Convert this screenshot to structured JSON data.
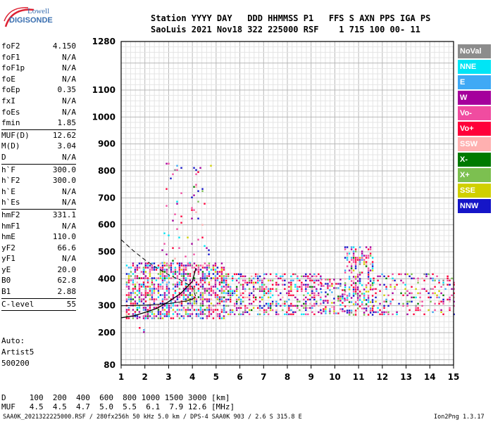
{
  "logo": {
    "line1": "Lowell",
    "line2": "DIGISONDE"
  },
  "header": {
    "line1": "Station YYYY DAY   DDD HHMMSS P1   FFS S AXN PPS IGA PS",
    "line2": "SaoLuis 2021 Nov18 322 225000 RSF    1 715 100 00- 11"
  },
  "params": [
    {
      "name": "foF2",
      "value": "4.150"
    },
    {
      "name": "foF1",
      "value": "N/A"
    },
    {
      "name": "foF1p",
      "value": "N/A"
    },
    {
      "name": "foE",
      "value": "N/A"
    },
    {
      "name": "foEp",
      "value": "0.35"
    },
    {
      "name": "fxI",
      "value": "N/A"
    },
    {
      "name": "foEs",
      "value": "N/A"
    },
    {
      "name": "fmin",
      "value": "1.85",
      "sep": true
    },
    {
      "name": "MUF(D)",
      "value": "12.62"
    },
    {
      "name": "M(D)",
      "value": "3.04"
    },
    {
      "name": "D",
      "value": "N/A",
      "sep": true
    },
    {
      "name": "h`F",
      "value": "300.0"
    },
    {
      "name": "h`F2",
      "value": "300.0"
    },
    {
      "name": "h`E",
      "value": "N/A"
    },
    {
      "name": "h`Es",
      "value": "N/A",
      "sep": true
    },
    {
      "name": "hmF2",
      "value": "331.1"
    },
    {
      "name": "hmF1",
      "value": "N/A"
    },
    {
      "name": "hmE",
      "value": "110.0"
    },
    {
      "name": "yF2",
      "value": "66.6"
    },
    {
      "name": "yF1",
      "value": "N/A"
    },
    {
      "name": "yE",
      "value": "20.0"
    },
    {
      "name": "B0",
      "value": "62.8"
    },
    {
      "name": "B1",
      "value": "2.88",
      "sep": true
    },
    {
      "name": "C-level",
      "value": "55",
      "sep": true
    }
  ],
  "autoscale": {
    "line1": "Auto:",
    "line2": "Artist5",
    "line3": "500200"
  },
  "legend": [
    {
      "label": "NoVal",
      "color": "#8c8c8c"
    },
    {
      "label": "NNE",
      "color": "#00e5f5"
    },
    {
      "label": "E",
      "color": "#3fa9f5"
    },
    {
      "label": "W",
      "color": "#a5009c"
    },
    {
      "label": "Vo-",
      "color": "#f04ca0"
    },
    {
      "label": "Vo+",
      "color": "#ff003a"
    },
    {
      "label": "SSW",
      "color": "#ffb0b0"
    },
    {
      "label": "X-",
      "color": "#007a00"
    },
    {
      "label": "X+",
      "color": "#7cc050"
    },
    {
      "label": "SSE",
      "color": "#d0d000"
    },
    {
      "label": "NNW",
      "color": "#1515c8"
    }
  ],
  "bottom": {
    "dline": "D     100  200  400  600  800 1000 1500 3000 [km]",
    "mufline": "MUF   4.5  4.5  4.7  5.0  5.5  6.1  7.9 12.6 [MHz]",
    "footer": "SAA0K_2021322225000.RSF / 280fx256h 50 kHz 5.0 km / DPS-4 SAA0K 903 / 2.6 S 315.8 E",
    "version": "Ion2Png 1.3.17"
  },
  "chart_data": {
    "type": "scatter",
    "xlim": [
      1,
      15
    ],
    "ylim": [
      80,
      1280
    ],
    "xticks": [
      "1",
      "2",
      "3",
      "4",
      "5",
      "6",
      "7",
      "8",
      "9",
      "10",
      "11",
      "12",
      "13",
      "14",
      "15"
    ],
    "yticks": [
      "80",
      "200",
      "300",
      "400",
      "500",
      "600",
      "700",
      "800",
      "900",
      "1000",
      "1100",
      "1280"
    ],
    "grid": true,
    "trace": {
      "x": [
        1.0,
        1.5,
        2.0,
        2.5,
        3.0,
        3.5,
        4.0,
        4.15
      ],
      "y": [
        255,
        262,
        275,
        290,
        315,
        345,
        390,
        440
      ]
    },
    "dashed_profile": {
      "x": [
        1.0,
        1.5,
        2.0,
        2.5,
        3.0,
        3.5,
        4.0,
        4.15
      ],
      "y": [
        545,
        505,
        470,
        440,
        415,
        395,
        370,
        331
      ]
    },
    "profile_line": {
      "x": [
        1.0,
        2.0,
        3.0,
        3.8,
        4.15
      ],
      "y": [
        300,
        302,
        308,
        318,
        331
      ]
    },
    "echo_bands": [
      {
        "x0": 1.2,
        "x1": 5.3,
        "y0": 255,
        "y1": 460,
        "density": 0.55
      },
      {
        "x0": 5.3,
        "x1": 7.4,
        "y0": 265,
        "y1": 420,
        "density": 0.45
      },
      {
        "x0": 7.5,
        "x1": 9.4,
        "y0": 265,
        "y1": 420,
        "density": 0.4
      },
      {
        "x0": 9.4,
        "x1": 10.4,
        "y0": 270,
        "y1": 400,
        "density": 0.35
      },
      {
        "x0": 10.4,
        "x1": 11.6,
        "y0": 265,
        "y1": 520,
        "density": 0.4
      },
      {
        "x0": 11.6,
        "x1": 15,
        "y0": 270,
        "y1": 420,
        "density": 0.22
      },
      {
        "x0": 2.7,
        "x1": 4.8,
        "y0": 460,
        "y1": 830,
        "density": 0.05
      },
      {
        "x0": 1.3,
        "x1": 2.0,
        "y0": 180,
        "y1": 260,
        "density": 0.06
      }
    ],
    "color_weights": {
      "#a5009c": 3,
      "#f04ca0": 3,
      "#ff003a": 2.5,
      "#3fa9f5": 1.5,
      "#00e5f5": 1,
      "#d0d000": 1,
      "#7cc050": 1,
      "#007a00": 0.5,
      "#1515c8": 1.5,
      "#ffb0b0": 0.6,
      "#8c8c8c": 0.4
    }
  }
}
